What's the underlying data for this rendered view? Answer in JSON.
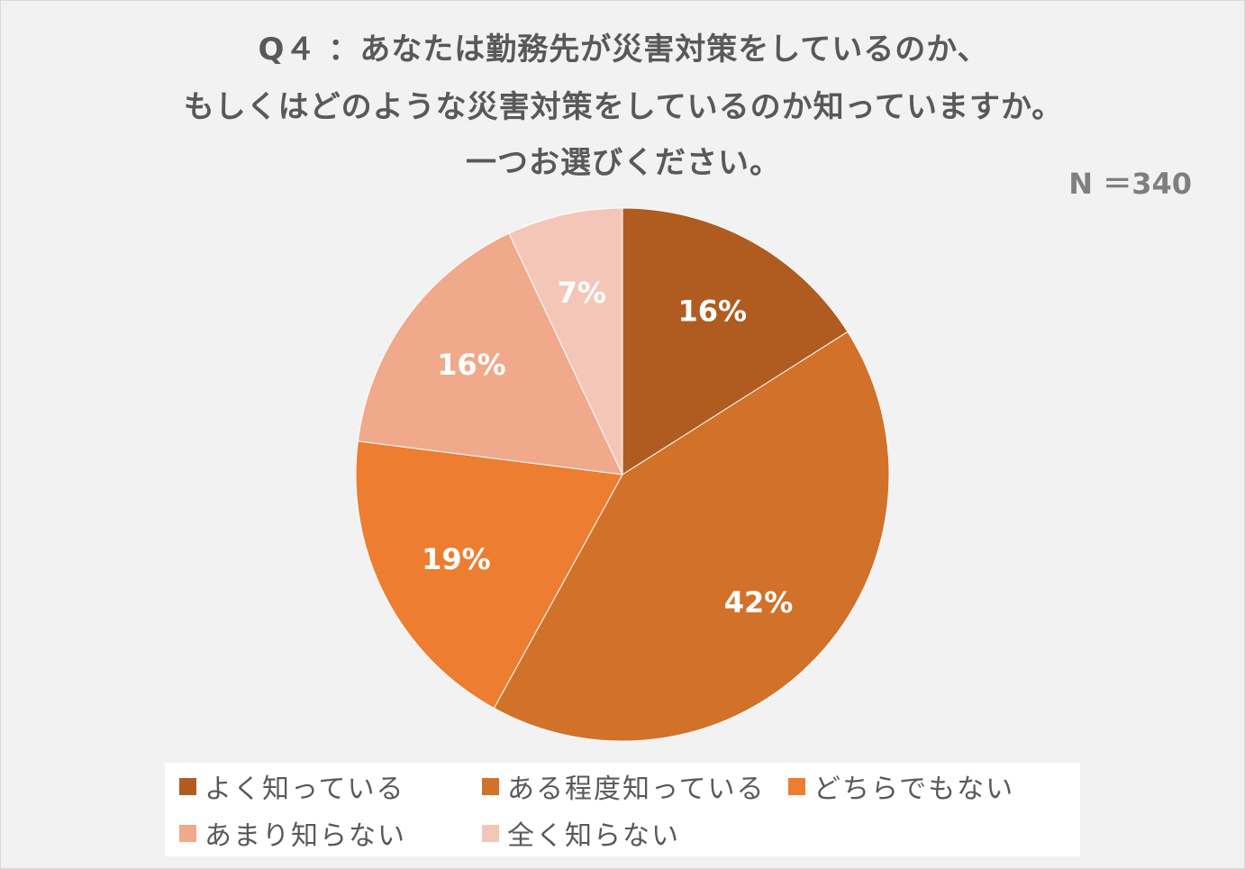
{
  "title": {
    "line1": "Q４ ：あなたは勤務先が災害対策をしているのか、",
    "line2": "もしくはどのような災害対策をしているのか知っていますか。",
    "line3": "一つお選びください。"
  },
  "sample_size": "N ＝340",
  "colors": {
    "background": "#f2f2f2",
    "slice_label": "#ffffff",
    "text": "#595959"
  },
  "chart_data": {
    "type": "pie",
    "title": "Q４ ：あなたは勤務先が災害対策をしているのか、もしくはどのような災害対策をしているのか知っていますか。一つお選びください。",
    "legend_position": "bottom",
    "start": "12 o'clock, clockwise",
    "slices": [
      {
        "label": "よく知っている",
        "value": 16,
        "display": "16%",
        "color": "#b05c20"
      },
      {
        "label": "ある程度知っている",
        "value": 42,
        "display": "42%",
        "color": "#d2712a"
      },
      {
        "label": "どちらでもない",
        "value": 19,
        "display": "19%",
        "color": "#ed7d31"
      },
      {
        "label": "あまり知らない",
        "value": 16,
        "display": "16%",
        "color": "#f0a98b"
      },
      {
        "label": "全く知らない",
        "value": 7,
        "display": "7%",
        "color": "#f4c6b8"
      }
    ]
  }
}
